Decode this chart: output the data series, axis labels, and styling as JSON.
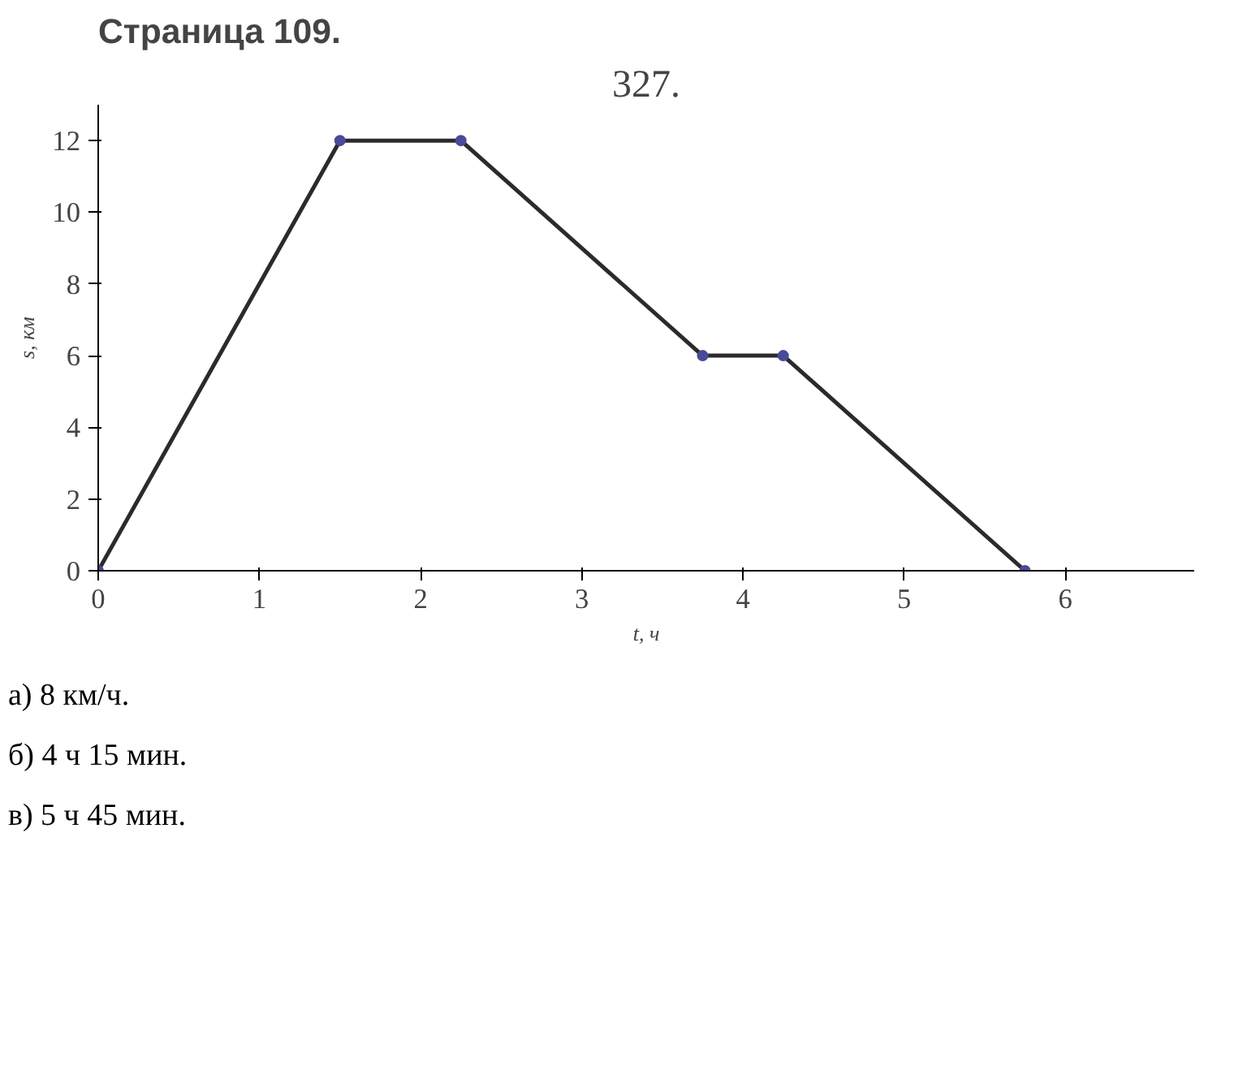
{
  "chart_data": {
    "type": "line",
    "title": "327.",
    "subtitle": "Страница 109.",
    "xlabel": "t, ч",
    "ylabel": "s, км",
    "x": [
      0,
      1.5,
      2.25,
      3.75,
      4.25,
      5.75
    ],
    "series": [
      {
        "color": "#2b2b2b",
        "values": [
          0,
          12,
          12,
          6,
          6,
          0
        ]
      }
    ],
    "xlim": [
      0,
      6.8
    ],
    "ylim": [
      0,
      13
    ],
    "xticks": [
      0,
      1,
      2,
      3,
      4,
      5,
      6
    ],
    "yticks": [
      0,
      2,
      4,
      6,
      8,
      10,
      12
    ],
    "grid": false,
    "marker": "circle",
    "line_style": "solid",
    "annotations": [
      "а) 8  км/ч.",
      "б) 4 ч 15 мин.",
      "в) 5 ч 45 мин."
    ]
  }
}
